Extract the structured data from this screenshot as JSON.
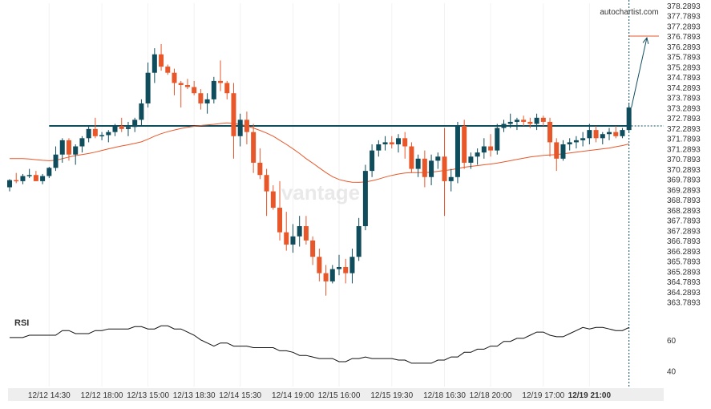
{
  "brand": {
    "label": "autochartist.com",
    "watermark": "vantage"
  },
  "colors": {
    "bull": "#0f4c5c",
    "bear": "#e8572a",
    "ma": "#e8572a",
    "level": "#0f4c5c",
    "forecast": "#0f4c5c",
    "target": "#e8572a",
    "rsi": "#111111",
    "axis_text": "#333333",
    "grid": "#f2f2f2",
    "bottom_bar": "#eeeeee"
  },
  "chart_data": {
    "type": "candlestick",
    "price_axis": {
      "ticks": [
        "378.2893",
        "377.7893",
        "377.2893",
        "376.7893",
        "376.2893",
        "375.7893",
        "375.2893",
        "374.7893",
        "374.2893",
        "373.7893",
        "373.2893",
        "372.7893",
        "372.2893",
        "371.7893",
        "371.2893",
        "370.7893",
        "370.2893",
        "369.7893",
        "369.2893",
        "368.7893",
        "368.2893",
        "367.7893",
        "367.2893",
        "366.7893",
        "366.2893",
        "365.7893",
        "365.2893",
        "364.7893",
        "364.2893",
        "363.7893"
      ],
      "range": [
        363.5,
        378.4
      ]
    },
    "time_axis": {
      "labels": [
        "12/12 14:30",
        "12/12 18:00",
        "12/13 15:00",
        "12/13 18:30",
        "12/14 15:30",
        "12/14 19:00",
        "12/15 16:00",
        "12/15 19:30",
        "12/18 16:30",
        "12/18 20:00",
        "12/19 17:00",
        "12/19 21:00"
      ],
      "label_candle_index": [
        6,
        14,
        21,
        28,
        35,
        43,
        50,
        58,
        66,
        73,
        81,
        88
      ],
      "current_label": "12/19 21:00"
    },
    "candles": [
      [
        369.4,
        369.8,
        369.2,
        369.75
      ],
      [
        369.75,
        370.1,
        369.6,
        369.7
      ],
      [
        369.7,
        370.05,
        369.55,
        369.95
      ],
      [
        369.95,
        370.3,
        369.85,
        370.0
      ],
      [
        370.0,
        370.2,
        369.7,
        369.7
      ],
      [
        369.7,
        370.05,
        369.55,
        369.95
      ],
      [
        369.95,
        370.4,
        369.85,
        370.35
      ],
      [
        370.35,
        371.4,
        370.2,
        371.0
      ],
      [
        371.0,
        371.8,
        370.6,
        371.7
      ],
      [
        371.7,
        371.8,
        370.7,
        371.0
      ],
      [
        371.0,
        371.5,
        370.5,
        371.4
      ],
      [
        371.4,
        371.9,
        371.1,
        371.8
      ],
      [
        371.8,
        372.4,
        371.6,
        372.25
      ],
      [
        372.25,
        372.8,
        371.8,
        371.9
      ],
      [
        371.9,
        372.1,
        371.7,
        371.95
      ],
      [
        371.95,
        372.2,
        371.6,
        372.1
      ],
      [
        372.1,
        372.5,
        371.9,
        372.4
      ],
      [
        372.4,
        372.8,
        372.1,
        372.25
      ],
      [
        372.25,
        372.6,
        371.9,
        372.35
      ],
      [
        372.35,
        372.8,
        372.1,
        372.7
      ],
      [
        372.7,
        373.7,
        372.4,
        373.5
      ],
      [
        373.5,
        375.5,
        373.3,
        375.0
      ],
      [
        375.0,
        376.2,
        374.5,
        375.9
      ],
      [
        375.9,
        376.4,
        375.1,
        375.3
      ],
      [
        375.3,
        375.4,
        374.9,
        375.0
      ],
      [
        375.0,
        375.2,
        373.9,
        374.5
      ],
      [
        374.5,
        374.6,
        373.3,
        374.4
      ],
      [
        374.4,
        374.7,
        374.2,
        374.3
      ],
      [
        374.3,
        374.6,
        373.9,
        374.0
      ],
      [
        374.0,
        374.2,
        373.2,
        373.5
      ],
      [
        373.5,
        374.0,
        373.0,
        373.7
      ],
      [
        373.7,
        374.8,
        373.5,
        374.6
      ],
      [
        374.6,
        375.6,
        374.1,
        374.5
      ],
      [
        374.5,
        374.6,
        373.7,
        374.0
      ],
      [
        374.0,
        374.5,
        370.8,
        371.9
      ],
      [
        371.9,
        373.0,
        371.4,
        372.7
      ],
      [
        372.7,
        373.1,
        371.5,
        372.1
      ],
      [
        372.1,
        372.5,
        370.1,
        370.6
      ],
      [
        370.6,
        371.3,
        369.8,
        370.0
      ],
      [
        370.0,
        370.3,
        368.0,
        369.2
      ],
      [
        369.2,
        369.5,
        368.3,
        368.4
      ],
      [
        368.4,
        369.7,
        366.8,
        367.2
      ],
      [
        367.2,
        368.2,
        366.3,
        366.6
      ],
      [
        366.6,
        367.6,
        366.2,
        367.0
      ],
      [
        367.0,
        368.0,
        366.5,
        367.5
      ],
      [
        367.5,
        368.0,
        366.6,
        366.8
      ],
      [
        366.8,
        367.0,
        365.6,
        366.0
      ],
      [
        366.0,
        366.4,
        364.8,
        365.2
      ],
      [
        365.2,
        365.6,
        364.1,
        364.8
      ],
      [
        364.8,
        365.6,
        364.7,
        365.4
      ],
      [
        365.4,
        366.1,
        365.1,
        365.5
      ],
      [
        365.5,
        365.9,
        364.7,
        365.2
      ],
      [
        365.2,
        366.4,
        364.7,
        366.0
      ],
      [
        366.0,
        367.9,
        365.8,
        367.5
      ],
      [
        367.5,
        370.5,
        367.3,
        370.2
      ],
      [
        370.2,
        371.5,
        369.9,
        371.2
      ],
      [
        371.2,
        371.7,
        370.9,
        371.5
      ],
      [
        371.5,
        371.9,
        371.2,
        371.6
      ],
      [
        371.6,
        371.9,
        371.3,
        371.5
      ],
      [
        371.5,
        372.0,
        371.1,
        371.8
      ],
      [
        371.8,
        372.1,
        370.8,
        371.4
      ],
      [
        371.4,
        371.6,
        370.1,
        370.3
      ],
      [
        370.3,
        371.0,
        369.9,
        370.8
      ],
      [
        370.8,
        371.2,
        369.4,
        369.9
      ],
      [
        369.9,
        371.0,
        369.5,
        370.7
      ],
      [
        370.7,
        371.1,
        370.3,
        370.9
      ],
      [
        370.9,
        372.3,
        368.0,
        369.7
      ],
      [
        369.7,
        370.3,
        369.2,
        369.9
      ],
      [
        369.9,
        372.6,
        369.6,
        372.4
      ],
      [
        372.4,
        372.7,
        370.3,
        370.6
      ],
      [
        370.6,
        371.1,
        370.3,
        370.9
      ],
      [
        370.9,
        371.3,
        370.5,
        371.1
      ],
      [
        371.1,
        371.8,
        370.8,
        371.4
      ],
      [
        371.4,
        372.0,
        370.9,
        371.2
      ],
      [
        371.2,
        372.5,
        371.0,
        372.3
      ],
      [
        372.3,
        372.7,
        372.1,
        372.5
      ],
      [
        372.5,
        373.0,
        372.3,
        372.6
      ],
      [
        372.6,
        372.8,
        372.2,
        372.7
      ],
      [
        372.7,
        372.9,
        372.4,
        372.6
      ],
      [
        372.6,
        372.8,
        372.3,
        372.5
      ],
      [
        372.5,
        373.0,
        372.2,
        372.8
      ],
      [
        372.8,
        372.9,
        372.4,
        372.6
      ],
      [
        372.6,
        372.8,
        370.9,
        371.6
      ],
      [
        371.6,
        371.8,
        370.2,
        370.8
      ],
      [
        370.8,
        371.7,
        370.7,
        371.5
      ],
      [
        371.5,
        371.8,
        371.2,
        371.6
      ],
      [
        371.6,
        371.9,
        371.3,
        371.7
      ],
      [
        371.7,
        372.1,
        371.4,
        371.8
      ],
      [
        371.8,
        372.5,
        371.5,
        372.2
      ],
      [
        372.2,
        372.4,
        371.6,
        371.8
      ],
      [
        371.8,
        372.1,
        371.5,
        372.0
      ],
      [
        372.0,
        372.3,
        371.7,
        372.1
      ],
      [
        372.1,
        372.4,
        371.8,
        371.9
      ],
      [
        371.9,
        372.3,
        371.8,
        372.2
      ],
      [
        372.2,
        373.5,
        372.1,
        373.3
      ]
    ],
    "moving_average": [
      370.8,
      370.8,
      370.8,
      370.78,
      370.75,
      370.72,
      370.7,
      370.72,
      370.8,
      370.88,
      370.95,
      371.0,
      371.05,
      371.12,
      371.2,
      371.28,
      371.35,
      371.42,
      371.48,
      371.55,
      371.62,
      371.75,
      371.9,
      372.02,
      372.12,
      372.2,
      372.27,
      372.33,
      372.38,
      372.42,
      372.45,
      372.48,
      372.52,
      372.55,
      372.52,
      372.47,
      372.4,
      372.3,
      372.18,
      372.05,
      371.9,
      371.7,
      371.5,
      371.28,
      371.05,
      370.8,
      370.58,
      370.35,
      370.12,
      369.92,
      369.78,
      369.7,
      369.65,
      369.64,
      369.66,
      369.72,
      369.8,
      369.9,
      369.98,
      370.05,
      370.1,
      370.12,
      370.12,
      370.12,
      370.14,
      370.18,
      370.22,
      370.26,
      370.32,
      370.38,
      370.42,
      370.46,
      370.5,
      370.54,
      370.58,
      370.64,
      370.7,
      370.76,
      370.82,
      370.88,
      370.92,
      370.96,
      370.98,
      371.0,
      371.04,
      371.08,
      371.12,
      371.16,
      371.2,
      371.24,
      371.28,
      371.32,
      371.38,
      371.44,
      371.52
    ],
    "horizontal_level": 372.4,
    "target_level": 376.79,
    "forecast": {
      "from_price": 373.3,
      "to_price": 376.79
    },
    "rsi": {
      "label": "RSI",
      "ticks": [
        60,
        40
      ],
      "range": [
        30,
        80
      ],
      "values": [
        61.5,
        61.5,
        61.5,
        63,
        63,
        63,
        63,
        63,
        66,
        66,
        64,
        64,
        64,
        66,
        66,
        67,
        67,
        67,
        67,
        68.5,
        68.5,
        67,
        67,
        69,
        69,
        67,
        67,
        65,
        63,
        60,
        58,
        56,
        58,
        58,
        56,
        56,
        56,
        55,
        55,
        55,
        55,
        53,
        53,
        52,
        50,
        50,
        49,
        48,
        48,
        48,
        46,
        46,
        48,
        48,
        49,
        48,
        48,
        48,
        48,
        47,
        47,
        45,
        45,
        45,
        45,
        47,
        47,
        49,
        49,
        52,
        52,
        54,
        54,
        56,
        56,
        59,
        59,
        61,
        61,
        63,
        65,
        65,
        63,
        62,
        62,
        64,
        66,
        68,
        67,
        68,
        68,
        67,
        66,
        66,
        68
      ]
    }
  }
}
